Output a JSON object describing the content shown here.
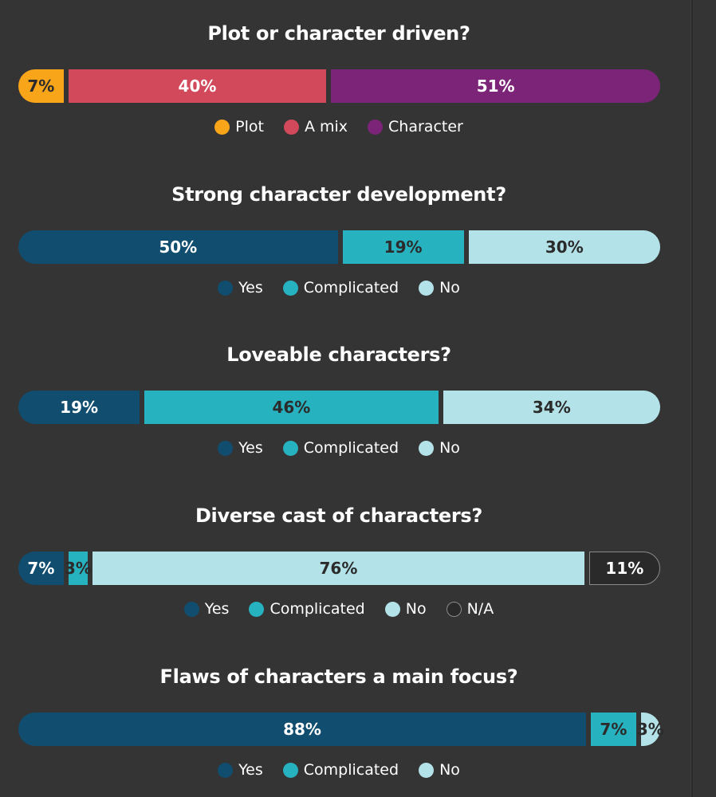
{
  "chart_data": [
    {
      "type": "bar",
      "orientation": "horizontal-stacked-100",
      "title": "Plot or character driven?",
      "categories": [
        "Plot",
        "A mix",
        "Character"
      ],
      "values": [
        7,
        40,
        51
      ],
      "labels": [
        "7%",
        "40%",
        "51%"
      ],
      "colors": [
        "#F9A51A",
        "#D1495B",
        "#7B2478"
      ],
      "text_colors": [
        "#2b2b2b",
        "#ffffff",
        "#ffffff"
      ],
      "outlined": [
        false,
        false,
        false
      ]
    },
    {
      "type": "bar",
      "orientation": "horizontal-stacked-100",
      "title": "Strong character development?",
      "categories": [
        "Yes",
        "Complicated",
        "No"
      ],
      "values": [
        50,
        19,
        30
      ],
      "labels": [
        "50%",
        "19%",
        "30%"
      ],
      "colors": [
        "#114D6E",
        "#27B2C0",
        "#B3E3E9"
      ],
      "text_colors": [
        "#ffffff",
        "#2b2b2b",
        "#2b2b2b"
      ],
      "outlined": [
        false,
        false,
        false
      ]
    },
    {
      "type": "bar",
      "orientation": "horizontal-stacked-100",
      "title": "Loveable characters?",
      "categories": [
        "Yes",
        "Complicated",
        "No"
      ],
      "values": [
        19,
        46,
        34
      ],
      "labels": [
        "19%",
        "46%",
        "34%"
      ],
      "colors": [
        "#114D6E",
        "#27B2C0",
        "#B3E3E9"
      ],
      "text_colors": [
        "#ffffff",
        "#2b2b2b",
        "#2b2b2b"
      ],
      "outlined": [
        false,
        false,
        false
      ]
    },
    {
      "type": "bar",
      "orientation": "horizontal-stacked-100",
      "title": "Diverse cast of characters?",
      "categories": [
        "Yes",
        "Complicated",
        "No",
        "N/A"
      ],
      "values": [
        7,
        3,
        76,
        11
      ],
      "labels": [
        "7%",
        "3%",
        "76%",
        "11%"
      ],
      "colors": [
        "#114D6E",
        "#27B2C0",
        "#B3E3E9",
        "#2a2a2a"
      ],
      "text_colors": [
        "#ffffff",
        "#2b2b2b",
        "#2b2b2b",
        "#ffffff"
      ],
      "outlined": [
        false,
        false,
        false,
        true
      ]
    },
    {
      "type": "bar",
      "orientation": "horizontal-stacked-100",
      "title": "Flaws of characters a main focus?",
      "categories": [
        "Yes",
        "Complicated",
        "No"
      ],
      "values": [
        88,
        7,
        3
      ],
      "labels": [
        "88%",
        "7%",
        "3%"
      ],
      "colors": [
        "#114D6E",
        "#27B2C0",
        "#B3E3E9"
      ],
      "text_colors": [
        "#ffffff",
        "#2b2b2b",
        "#2b2b2b"
      ],
      "outlined": [
        false,
        false,
        false
      ]
    }
  ]
}
